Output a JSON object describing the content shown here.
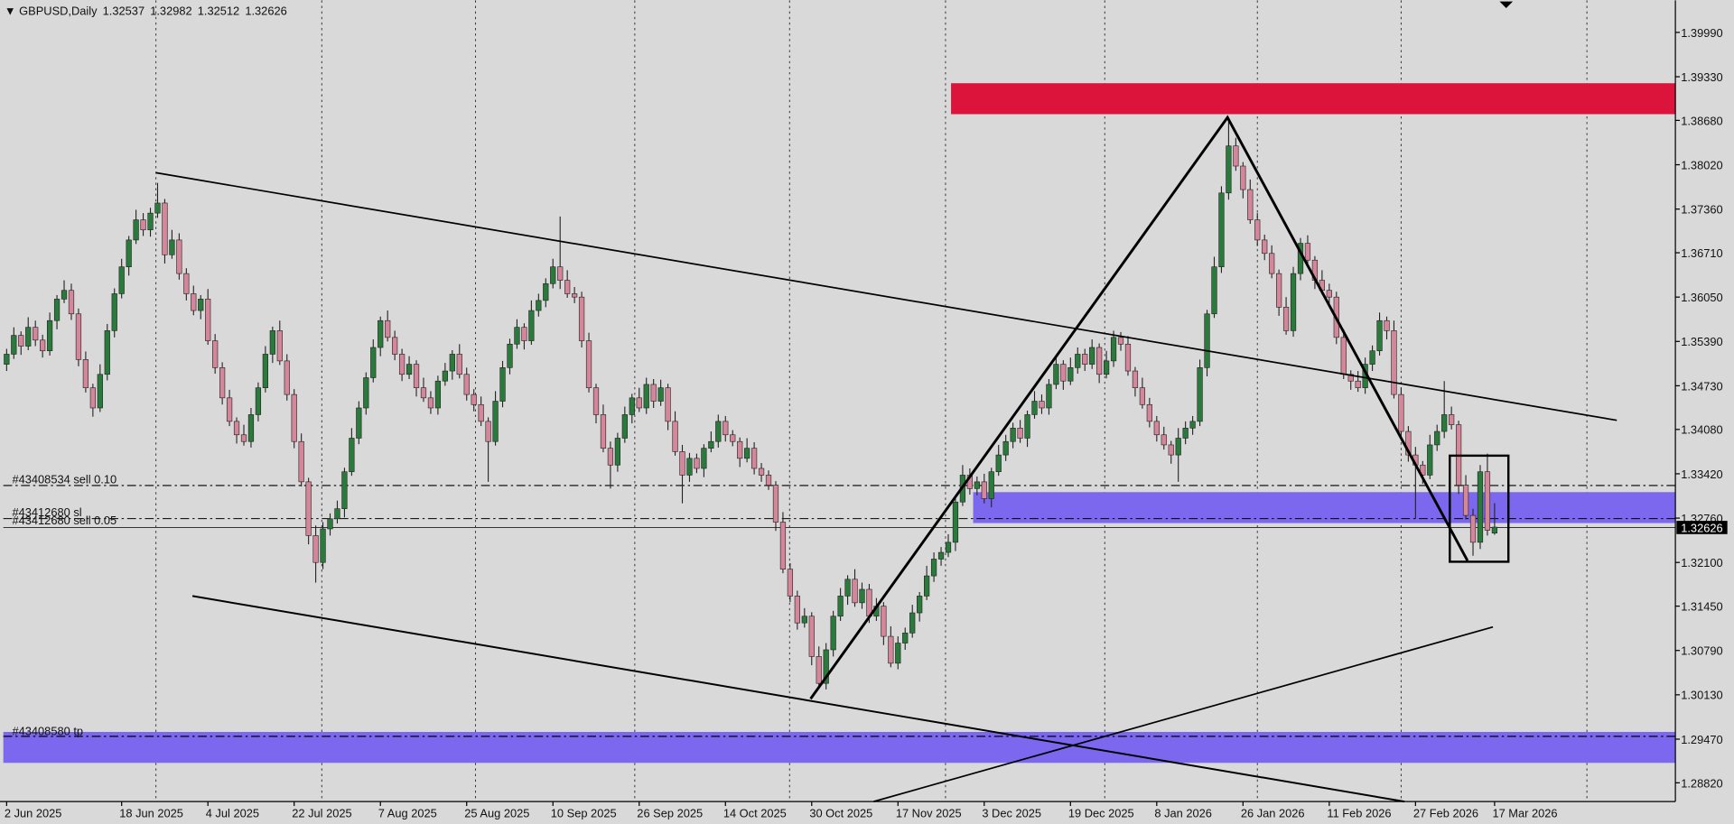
{
  "chart_data": {
    "type": "candlestick",
    "title": "GBPUSD,Daily",
    "up_color": "#2a7a3b",
    "down_color": "#d4869a",
    "ylim": [
      1.28541,
      1.40467
    ],
    "yticks": [
      {
        "value": 1.3999,
        "label": "1.39990"
      },
      {
        "value": 1.3933,
        "label": "1.39330"
      },
      {
        "value": 1.3868,
        "label": "1.38680"
      },
      {
        "value": 1.3802,
        "label": "1.38020"
      },
      {
        "value": 1.3736,
        "label": "1.37360"
      },
      {
        "value": 1.3671,
        "label": "1.36710"
      },
      {
        "value": 1.3605,
        "label": "1.36050"
      },
      {
        "value": 1.3539,
        "label": "1.35390"
      },
      {
        "value": 1.3473,
        "label": "1.34730"
      },
      {
        "value": 1.3408,
        "label": "1.34080"
      },
      {
        "value": 1.3342,
        "label": "1.33420"
      },
      {
        "value": 1.3276,
        "label": "1.32760"
      },
      {
        "value": 1.321,
        "label": "1.32100"
      },
      {
        "value": 1.3145,
        "label": "1.31450"
      },
      {
        "value": 1.3079,
        "label": "1.30790"
      },
      {
        "value": 1.3013,
        "label": "1.30130"
      },
      {
        "value": 1.2947,
        "label": "1.29470"
      },
      {
        "value": 1.2882,
        "label": "1.28820"
      }
    ],
    "xticks": [
      {
        "value": 0,
        "label": "2 Jun 2025"
      },
      {
        "value": 16,
        "label": "18 Jun 2025"
      },
      {
        "value": 28,
        "label": "4 Jul 2025"
      },
      {
        "value": 40,
        "label": "22 Jul 2025"
      },
      {
        "value": 52,
        "label": "7 Aug 2025"
      },
      {
        "value": 64,
        "label": "25 Aug 2025"
      },
      {
        "value": 76,
        "label": "10 Sep 2025"
      },
      {
        "value": 88,
        "label": "26 Sep 2025"
      },
      {
        "value": 100,
        "label": "14 Oct 2025"
      },
      {
        "value": 112,
        "label": "30 Oct 2025"
      },
      {
        "value": 124,
        "label": "17 Nov 2025"
      },
      {
        "value": 136,
        "label": "3 Dec 2025"
      },
      {
        "value": 148,
        "label": "19 Dec 2025"
      },
      {
        "value": 160,
        "label": "8 Jan 2026"
      },
      {
        "value": 172,
        "label": "26 Jan 2026"
      },
      {
        "value": 184,
        "label": "11 Feb 2026"
      },
      {
        "value": 196,
        "label": "27 Feb 2026"
      },
      {
        "value": 207,
        "label": "17 Mar 2026"
      }
    ],
    "annotations": [
      "#43408534 sell 0.10",
      "#43412680 sl",
      "#43412680 sell 0.05",
      "#43408580 tp"
    ],
    "ohlc": [
      [
        1.3505,
        1.3528,
        1.3495,
        1.352
      ],
      [
        1.352,
        1.356,
        1.3513,
        1.3548
      ],
      [
        1.3548,
        1.3554,
        1.3519,
        1.3532
      ],
      [
        1.3532,
        1.3575,
        1.3526,
        1.356
      ],
      [
        1.356,
        1.357,
        1.3532,
        1.3541
      ],
      [
        1.3541,
        1.3549,
        1.3515,
        1.3525
      ],
      [
        1.3525,
        1.3582,
        1.3518,
        1.357
      ],
      [
        1.357,
        1.3608,
        1.3557,
        1.3602
      ],
      [
        1.3602,
        1.363,
        1.3596,
        1.3615
      ],
      [
        1.3615,
        1.3625,
        1.3571,
        1.358
      ],
      [
        1.358,
        1.3588,
        1.3502,
        1.3512
      ],
      [
        1.3512,
        1.3524,
        1.3463,
        1.347
      ],
      [
        1.347,
        1.3476,
        1.3427,
        1.344
      ],
      [
        1.344,
        1.3505,
        1.3434,
        1.349
      ],
      [
        1.349,
        1.3565,
        1.3481,
        1.3555
      ],
      [
        1.3555,
        1.3618,
        1.3545,
        1.361
      ],
      [
        1.361,
        1.3662,
        1.3603,
        1.365
      ],
      [
        1.365,
        1.3696,
        1.3637,
        1.369
      ],
      [
        1.369,
        1.3735,
        1.3684,
        1.372
      ],
      [
        1.372,
        1.373,
        1.3696,
        1.3705
      ],
      [
        1.3705,
        1.3738,
        1.3695,
        1.373
      ],
      [
        1.373,
        1.3775,
        1.3723,
        1.3745
      ],
      [
        1.3745,
        1.3751,
        1.3655,
        1.3668
      ],
      [
        1.3668,
        1.3705,
        1.3662,
        1.369
      ],
      [
        1.369,
        1.37,
        1.3631,
        1.364
      ],
      [
        1.364,
        1.3648,
        1.36,
        1.361
      ],
      [
        1.361,
        1.3622,
        1.3578,
        1.3585
      ],
      [
        1.3585,
        1.3608,
        1.3572,
        1.3602
      ],
      [
        1.3602,
        1.3617,
        1.3534,
        1.354
      ],
      [
        1.354,
        1.355,
        1.3491,
        1.35
      ],
      [
        1.35,
        1.3508,
        1.3445,
        1.3455
      ],
      [
        1.3455,
        1.3467,
        1.3413,
        1.342
      ],
      [
        1.342,
        1.3426,
        1.3387,
        1.34
      ],
      [
        1.34,
        1.3415,
        1.3384,
        1.339
      ],
      [
        1.339,
        1.344,
        1.3381,
        1.343
      ],
      [
        1.343,
        1.3478,
        1.342,
        1.347
      ],
      [
        1.347,
        1.3532,
        1.3463,
        1.352
      ],
      [
        1.352,
        1.3561,
        1.3507,
        1.3555
      ],
      [
        1.3555,
        1.357,
        1.3504,
        1.351
      ],
      [
        1.351,
        1.352,
        1.3451,
        1.346
      ],
      [
        1.346,
        1.3468,
        1.338,
        1.339
      ],
      [
        1.339,
        1.3402,
        1.3323,
        1.333
      ],
      [
        1.333,
        1.3336,
        1.3237,
        1.325
      ],
      [
        1.325,
        1.3265,
        1.318,
        1.321
      ],
      [
        1.321,
        1.327,
        1.32,
        1.326
      ],
      [
        1.326,
        1.3283,
        1.325,
        1.3275
      ],
      [
        1.3275,
        1.3302,
        1.3268,
        1.329
      ],
      [
        1.329,
        1.3351,
        1.3277,
        1.3345
      ],
      [
        1.3345,
        1.341,
        1.3339,
        1.3395
      ],
      [
        1.3395,
        1.345,
        1.3386,
        1.344
      ],
      [
        1.344,
        1.3493,
        1.343,
        1.3485
      ],
      [
        1.3485,
        1.3542,
        1.3478,
        1.353
      ],
      [
        1.353,
        1.3576,
        1.3517,
        1.357
      ],
      [
        1.357,
        1.3585,
        1.3539,
        1.3545
      ],
      [
        1.3545,
        1.3555,
        1.3511,
        1.352
      ],
      [
        1.352,
        1.3528,
        1.348,
        1.349
      ],
      [
        1.349,
        1.3517,
        1.3483,
        1.3505
      ],
      [
        1.3505,
        1.3511,
        1.3457,
        1.347
      ],
      [
        1.347,
        1.3485,
        1.3449,
        1.3455
      ],
      [
        1.3455,
        1.3465,
        1.3431,
        1.344
      ],
      [
        1.344,
        1.3488,
        1.343,
        1.348
      ],
      [
        1.348,
        1.3507,
        1.3473,
        1.3495
      ],
      [
        1.3495,
        1.3526,
        1.3482,
        1.352
      ],
      [
        1.352,
        1.3535,
        1.3484,
        1.349
      ],
      [
        1.349,
        1.35,
        1.3451,
        1.346
      ],
      [
        1.346,
        1.3468,
        1.3435,
        1.3445
      ],
      [
        1.3445,
        1.3457,
        1.3413,
        1.342
      ],
      [
        1.342,
        1.3426,
        1.333,
        1.339
      ],
      [
        1.339,
        1.3465,
        1.3384,
        1.345
      ],
      [
        1.345,
        1.351,
        1.3441,
        1.35
      ],
      [
        1.35,
        1.3543,
        1.349,
        1.3535
      ],
      [
        1.3535,
        1.3572,
        1.3528,
        1.356
      ],
      [
        1.356,
        1.3566,
        1.3527,
        1.354
      ],
      [
        1.354,
        1.36,
        1.3534,
        1.3585
      ],
      [
        1.3585,
        1.361,
        1.3576,
        1.36
      ],
      [
        1.36,
        1.3633,
        1.359,
        1.3625
      ],
      [
        1.3625,
        1.3662,
        1.3618,
        1.365
      ],
      [
        1.365,
        1.3725,
        1.3617,
        1.363
      ],
      [
        1.363,
        1.3645,
        1.3604,
        1.361
      ],
      [
        1.361,
        1.362,
        1.3596,
        1.3605
      ],
      [
        1.3605,
        1.3613,
        1.353,
        1.354
      ],
      [
        1.354,
        1.3552,
        1.3463,
        1.347
      ],
      [
        1.347,
        1.3476,
        1.3417,
        1.343
      ],
      [
        1.343,
        1.3445,
        1.3374,
        1.338
      ],
      [
        1.338,
        1.339,
        1.332,
        1.3355
      ],
      [
        1.3355,
        1.3403,
        1.3345,
        1.3395
      ],
      [
        1.3395,
        1.3442,
        1.3388,
        1.343
      ],
      [
        1.343,
        1.3461,
        1.3417,
        1.3455
      ],
      [
        1.3455,
        1.347,
        1.3434,
        1.344
      ],
      [
        1.344,
        1.3485,
        1.3431,
        1.3475
      ],
      [
        1.3475,
        1.3483,
        1.344,
        1.345
      ],
      [
        1.345,
        1.3482,
        1.3443,
        1.347
      ],
      [
        1.347,
        1.3476,
        1.3407,
        1.342
      ],
      [
        1.342,
        1.3435,
        1.3369,
        1.3375
      ],
      [
        1.3375,
        1.3385,
        1.3298,
        1.334
      ],
      [
        1.334,
        1.3373,
        1.333,
        1.3365
      ],
      [
        1.3365,
        1.3372,
        1.3343,
        1.335
      ],
      [
        1.335,
        1.3386,
        1.3337,
        1.338
      ],
      [
        1.338,
        1.3405,
        1.3374,
        1.339
      ],
      [
        1.339,
        1.343,
        1.3381,
        1.342
      ],
      [
        1.342,
        1.3428,
        1.339,
        1.34
      ],
      [
        1.34,
        1.3407,
        1.3383,
        1.339
      ],
      [
        1.339,
        1.3396,
        1.3352,
        1.3365
      ],
      [
        1.3365,
        1.3395,
        1.3359,
        1.338
      ],
      [
        1.338,
        1.3389,
        1.3341,
        1.335
      ],
      [
        1.335,
        1.3358,
        1.333,
        1.334
      ],
      [
        1.334,
        1.3347,
        1.3318,
        1.3325
      ],
      [
        1.3325,
        1.3331,
        1.3257,
        1.327
      ],
      [
        1.327,
        1.3285,
        1.3194,
        1.32
      ],
      [
        1.32,
        1.3209,
        1.3151,
        1.316
      ],
      [
        1.316,
        1.3168,
        1.311,
        1.312
      ],
      [
        1.312,
        1.3142,
        1.3113,
        1.313
      ],
      [
        1.313,
        1.3136,
        1.3057,
        1.307
      ],
      [
        1.307,
        1.3085,
        1.3024,
        1.303
      ],
      [
        1.303,
        1.309,
        1.3021,
        1.308
      ],
      [
        1.308,
        1.3138,
        1.307,
        1.313
      ],
      [
        1.313,
        1.3172,
        1.3123,
        1.316
      ],
      [
        1.316,
        1.3191,
        1.3147,
        1.3185
      ],
      [
        1.3185,
        1.32,
        1.3144,
        1.315
      ],
      [
        1.315,
        1.318,
        1.3141,
        1.317
      ],
      [
        1.317,
        1.3178,
        1.312,
        1.313
      ],
      [
        1.313,
        1.3157,
        1.3123,
        1.3145
      ],
      [
        1.3145,
        1.3151,
        1.3087,
        1.31
      ],
      [
        1.31,
        1.3115,
        1.3054,
        1.306
      ],
      [
        1.306,
        1.31,
        1.3051,
        1.309
      ],
      [
        1.309,
        1.3113,
        1.308,
        1.3105
      ],
      [
        1.3105,
        1.3147,
        1.3098,
        1.3135
      ],
      [
        1.3135,
        1.3166,
        1.3122,
        1.316
      ],
      [
        1.316,
        1.3205,
        1.3154,
        1.319
      ],
      [
        1.319,
        1.3225,
        1.3181,
        1.3215
      ],
      [
        1.3215,
        1.3233,
        1.3205,
        1.3225
      ],
      [
        1.3225,
        1.3252,
        1.3218,
        1.324
      ],
      [
        1.324,
        1.3306,
        1.3227,
        1.33
      ],
      [
        1.33,
        1.3355,
        1.3294,
        1.334
      ],
      [
        1.334,
        1.335,
        1.3311,
        1.332
      ],
      [
        1.332,
        1.3338,
        1.331,
        1.333
      ],
      [
        1.333,
        1.3342,
        1.3298,
        1.3305
      ],
      [
        1.3305,
        1.3351,
        1.3292,
        1.3345
      ],
      [
        1.3345,
        1.3385,
        1.3339,
        1.337
      ],
      [
        1.337,
        1.34,
        1.3361,
        1.339
      ],
      [
        1.339,
        1.3418,
        1.338,
        1.341
      ],
      [
        1.341,
        1.3422,
        1.3388,
        1.3395
      ],
      [
        1.3395,
        1.3436,
        1.3382,
        1.343
      ],
      [
        1.343,
        1.3465,
        1.3424,
        1.345
      ],
      [
        1.345,
        1.346,
        1.3431,
        1.344
      ],
      [
        1.344,
        1.3483,
        1.343,
        1.3475
      ],
      [
        1.3475,
        1.3517,
        1.3468,
        1.3505
      ],
      [
        1.3505,
        1.3511,
        1.3467,
        1.348
      ],
      [
        1.348,
        1.3515,
        1.3474,
        1.35
      ],
      [
        1.35,
        1.353,
        1.3491,
        1.352
      ],
      [
        1.352,
        1.3528,
        1.3495,
        1.3505
      ],
      [
        1.3505,
        1.3542,
        1.3498,
        1.353
      ],
      [
        1.353,
        1.3536,
        1.3477,
        1.349
      ],
      [
        1.349,
        1.3525,
        1.3484,
        1.351
      ],
      [
        1.351,
        1.3555,
        1.3501,
        1.3545
      ],
      [
        1.3545,
        1.3553,
        1.3525,
        1.3535
      ],
      [
        1.3535,
        1.3547,
        1.3488,
        1.3495
      ],
      [
        1.3495,
        1.3501,
        1.3457,
        1.347
      ],
      [
        1.347,
        1.3485,
        1.3439,
        1.3445
      ],
      [
        1.3445,
        1.3455,
        1.3411,
        1.342
      ],
      [
        1.342,
        1.3428,
        1.339,
        1.34
      ],
      [
        1.34,
        1.3412,
        1.3378,
        1.3385
      ],
      [
        1.3385,
        1.3391,
        1.3357,
        1.337
      ],
      [
        1.337,
        1.341,
        1.333,
        1.3395
      ],
      [
        1.3395,
        1.342,
        1.3386,
        1.341
      ],
      [
        1.341,
        1.3428,
        1.34,
        1.342
      ],
      [
        1.342,
        1.3512,
        1.3413,
        1.35
      ],
      [
        1.35,
        1.3586,
        1.3487,
        1.358
      ],
      [
        1.358,
        1.3665,
        1.3574,
        1.365
      ],
      [
        1.365,
        1.377,
        1.3641,
        1.376
      ],
      [
        1.376,
        1.387,
        1.375,
        1.383
      ],
      [
        1.383,
        1.3842,
        1.3793,
        1.38
      ],
      [
        1.38,
        1.3806,
        1.3752,
        1.3765
      ],
      [
        1.3765,
        1.378,
        1.3714,
        1.372
      ],
      [
        1.372,
        1.373,
        1.3681,
        1.369
      ],
      [
        1.369,
        1.3698,
        1.366,
        1.367
      ],
      [
        1.367,
        1.3682,
        1.3633,
        1.364
      ],
      [
        1.364,
        1.3646,
        1.3577,
        1.359
      ],
      [
        1.359,
        1.3605,
        1.3549,
        1.3555
      ],
      [
        1.3555,
        1.365,
        1.3546,
        1.364
      ],
      [
        1.364,
        1.3693,
        1.363,
        1.3685
      ],
      [
        1.3685,
        1.3697,
        1.3653,
        1.366
      ],
      [
        1.366,
        1.3666,
        1.3617,
        1.363
      ],
      [
        1.363,
        1.3645,
        1.3609,
        1.3615
      ],
      [
        1.3615,
        1.3625,
        1.3596,
        1.3605
      ],
      [
        1.3605,
        1.3613,
        1.3535,
        1.3545
      ],
      [
        1.3545,
        1.3557,
        1.3483,
        1.349
      ],
      [
        1.349,
        1.3496,
        1.3467,
        1.348
      ],
      [
        1.348,
        1.3495,
        1.3464,
        1.347
      ],
      [
        1.347,
        1.3515,
        1.3461,
        1.3505
      ],
      [
        1.3505,
        1.3533,
        1.3495,
        1.3525
      ],
      [
        1.3525,
        1.3582,
        1.3518,
        1.357
      ],
      [
        1.357,
        1.3576,
        1.3542,
        1.3555
      ],
      [
        1.3555,
        1.357,
        1.3454,
        1.346
      ],
      [
        1.346,
        1.347,
        1.3396,
        1.3405
      ],
      [
        1.3405,
        1.3413,
        1.336,
        1.337
      ],
      [
        1.337,
        1.3382,
        1.3275,
        1.3355
      ],
      [
        1.3355,
        1.3361,
        1.3327,
        1.334
      ],
      [
        1.334,
        1.34,
        1.3334,
        1.3385
      ],
      [
        1.3385,
        1.3415,
        1.3376,
        1.3405
      ],
      [
        1.3405,
        1.348,
        1.3395,
        1.343
      ],
      [
        1.343,
        1.3442,
        1.3408,
        1.3415
      ],
      [
        1.3415,
        1.3421,
        1.3312,
        1.3325
      ],
      [
        1.3325,
        1.334,
        1.3274,
        1.328
      ],
      [
        1.328,
        1.329,
        1.322,
        1.324
      ],
      [
        1.324,
        1.3355,
        1.323,
        1.3345
      ],
      [
        1.3345,
        1.3372,
        1.325,
        1.3258
      ],
      [
        1.32537,
        1.32982,
        1.32512,
        1.32626
      ]
    ]
  }
}
